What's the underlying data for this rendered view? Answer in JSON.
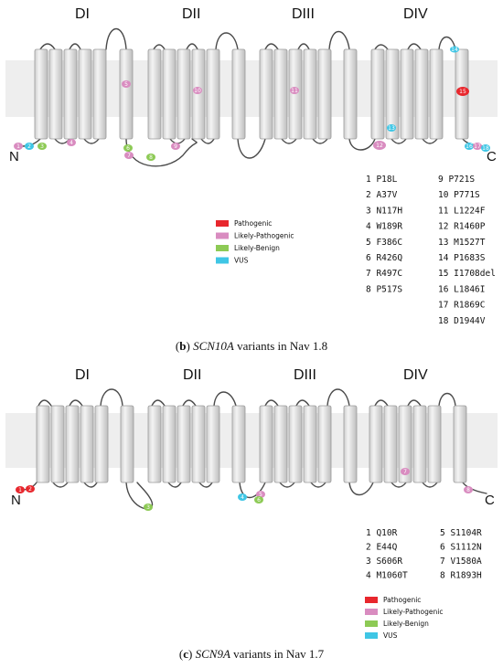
{
  "colors": {
    "Pathogenic": "#e8272d",
    "Likely-Pathogenic": "#d98cc0",
    "Likely-Benign": "#8dca55",
    "VUS": "#3fc6e5"
  },
  "legend": [
    {
      "label": "Pathogenic",
      "key": "Pathogenic"
    },
    {
      "label": "Likely-Pathogenic",
      "key": "Likely-Pathogenic"
    },
    {
      "label": "Likely-Benign",
      "key": "Likely-Benign"
    },
    {
      "label": "VUS",
      "key": "VUS"
    }
  ],
  "panels": [
    {
      "id": "b",
      "domains": [
        "DI",
        "DII",
        "DIII",
        "DIV"
      ],
      "n_label": "N",
      "c_label": "C",
      "caption_letter": "b",
      "caption_gene": "SCN10A",
      "caption_rest": " variants in Nav 1.8",
      "variants": [
        {
          "n": 1,
          "name": "P18L",
          "class": "Likely-Pathogenic"
        },
        {
          "n": 2,
          "name": "A37V",
          "class": "VUS"
        },
        {
          "n": 3,
          "name": "N117H",
          "class": "Likely-Benign"
        },
        {
          "n": 4,
          "name": "W189R",
          "class": "Likely-Pathogenic"
        },
        {
          "n": 5,
          "name": "F386C",
          "class": "Likely-Pathogenic"
        },
        {
          "n": 6,
          "name": "R426Q",
          "class": "Likely-Benign"
        },
        {
          "n": 7,
          "name": "R497C",
          "class": "Likely-Pathogenic"
        },
        {
          "n": 8,
          "name": "P517S",
          "class": "Likely-Benign"
        },
        {
          "n": 9,
          "name": "P721S",
          "class": "Likely-Pathogenic"
        },
        {
          "n": 10,
          "name": "P771S",
          "class": "Likely-Pathogenic"
        },
        {
          "n": 11,
          "name": "L1224F",
          "class": "Likely-Pathogenic"
        },
        {
          "n": 12,
          "name": "R1460P",
          "class": "Likely-Pathogenic"
        },
        {
          "n": 13,
          "name": "M1527T",
          "class": "VUS"
        },
        {
          "n": 14,
          "name": "P1683S",
          "class": "VUS"
        },
        {
          "n": 15,
          "name": "I1708del",
          "class": "Pathogenic"
        },
        {
          "n": 16,
          "name": "L1846I",
          "class": "VUS"
        },
        {
          "n": 17,
          "name": "R1869C",
          "class": "Likely-Pathogenic"
        },
        {
          "n": 18,
          "name": "D1944V",
          "class": "VUS"
        }
      ]
    },
    {
      "id": "c",
      "domains": [
        "DI",
        "DII",
        "DIII",
        "DIV"
      ],
      "n_label": "N",
      "c_label": "C",
      "caption_letter": "c",
      "caption_gene": "SCN9A",
      "caption_rest": " variants in Nav 1.7",
      "variants": [
        {
          "n": 1,
          "name": "Q10R",
          "class": "Pathogenic"
        },
        {
          "n": 2,
          "name": "E44Q",
          "class": "Pathogenic"
        },
        {
          "n": 3,
          "name": "S606R",
          "class": "Likely-Benign"
        },
        {
          "n": 4,
          "name": "M1060T",
          "class": "VUS"
        },
        {
          "n": 5,
          "name": "S1104R",
          "class": "Likely-Pathogenic"
        },
        {
          "n": 6,
          "name": "S1112N",
          "class": "Likely-Benign"
        },
        {
          "n": 7,
          "name": "V1580A",
          "class": "Likely-Pathogenic"
        },
        {
          "n": 8,
          "name": "R1893H",
          "class": "Likely-Pathogenic"
        }
      ]
    }
  ]
}
